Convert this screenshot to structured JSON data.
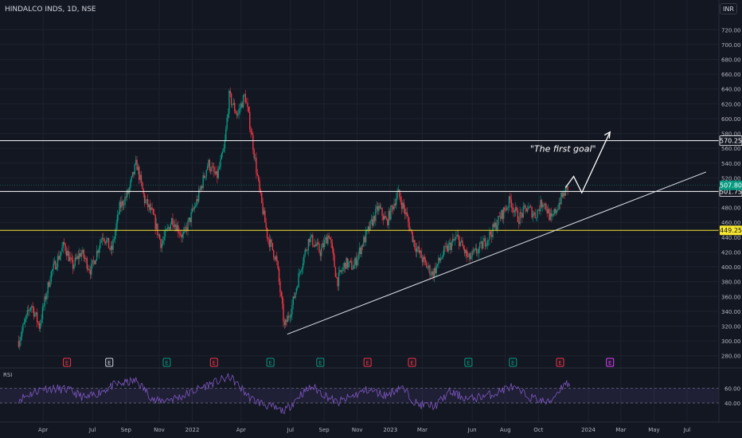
{
  "header": {
    "symbol": "HINDALCO INDS, 1D, NSE",
    "currency": "INR"
  },
  "chart_data": {
    "type": "candlestick",
    "price_axis": {
      "ylim": [
        270,
        730
      ],
      "ticks": [
        280,
        300,
        320,
        340,
        360,
        380,
        400,
        420,
        440,
        460,
        480,
        500,
        520,
        540,
        560,
        580,
        600,
        620,
        640,
        660,
        680,
        700,
        720
      ],
      "tick_labels": [
        "280.00",
        "300.00",
        "320.00",
        "340.00",
        "360.00",
        "380.00",
        "400.00",
        "420.00",
        "440.00",
        "460.00",
        "480.00",
        "500.00",
        "520.00",
        "540.00",
        "560.00",
        "580.00",
        "600.00",
        "620.00",
        "640.00",
        "660.00",
        "680.00",
        "700.00",
        "720.00"
      ]
    },
    "time_axis": {
      "labels": [
        "Apr",
        "Jul",
        "Sep",
        "Nov",
        "2022",
        "Apr",
        "Jul",
        "Sep",
        "Nov",
        "2023",
        "Mar",
        "Jun",
        "Aug",
        "Oct",
        "2024",
        "Mar",
        "May",
        "Jul"
      ],
      "dates": [
        "2021-04-01",
        "2021-07-01",
        "2021-09-01",
        "2021-11-01",
        "2022-01-01",
        "2022-04-01",
        "2022-07-01",
        "2022-09-01",
        "2022-11-01",
        "2023-01-01",
        "2023-03-01",
        "2023-06-01",
        "2023-08-01",
        "2023-10-01",
        "2024-01-01",
        "2024-03-01",
        "2024-05-01",
        "2024-07-01"
      ]
    },
    "price_path": [
      [
        "2021-02-15",
        300
      ],
      [
        "2021-03-10",
        350
      ],
      [
        "2021-03-25",
        320
      ],
      [
        "2021-04-15",
        390
      ],
      [
        "2021-05-10",
        430
      ],
      [
        "2021-05-25",
        400
      ],
      [
        "2021-06-10",
        420
      ],
      [
        "2021-06-28",
        395
      ],
      [
        "2021-07-20",
        445
      ],
      [
        "2021-08-05",
        420
      ],
      [
        "2021-08-20",
        480
      ],
      [
        "2021-09-05",
        500
      ],
      [
        "2021-09-20",
        540
      ],
      [
        "2021-10-05",
        490
      ],
      [
        "2021-10-20",
        470
      ],
      [
        "2021-11-05",
        430
      ],
      [
        "2021-11-25",
        465
      ],
      [
        "2021-12-15",
        440
      ],
      [
        "2022-01-10",
        490
      ],
      [
        "2022-01-30",
        540
      ],
      [
        "2022-02-15",
        520
      ],
      [
        "2022-03-01",
        560
      ],
      [
        "2022-03-10",
        630
      ],
      [
        "2022-03-25",
        605
      ],
      [
        "2022-04-08",
        632
      ],
      [
        "2022-04-20",
        580
      ],
      [
        "2022-05-05",
        500
      ],
      [
        "2022-05-20",
        440
      ],
      [
        "2022-06-05",
        410
      ],
      [
        "2022-06-20",
        318
      ],
      [
        "2022-07-05",
        350
      ],
      [
        "2022-07-20",
        400
      ],
      [
        "2022-08-05",
        440
      ],
      [
        "2022-08-25",
        420
      ],
      [
        "2022-09-10",
        445
      ],
      [
        "2022-09-25",
        380
      ],
      [
        "2022-10-10",
        405
      ],
      [
        "2022-10-25",
        400
      ],
      [
        "2022-11-10",
        430
      ],
      [
        "2022-11-25",
        455
      ],
      [
        "2022-12-10",
        480
      ],
      [
        "2022-12-25",
        460
      ],
      [
        "2023-01-15",
        500
      ],
      [
        "2023-01-30",
        470
      ],
      [
        "2023-02-15",
        430
      ],
      [
        "2023-03-05",
        405
      ],
      [
        "2023-03-20",
        390
      ],
      [
        "2023-04-10",
        420
      ],
      [
        "2023-05-05",
        440
      ],
      [
        "2023-05-25",
        410
      ],
      [
        "2023-06-15",
        425
      ],
      [
        "2023-07-05",
        445
      ],
      [
        "2023-07-25",
        470
      ],
      [
        "2023-08-10",
        490
      ],
      [
        "2023-08-25",
        465
      ],
      [
        "2023-09-10",
        480
      ],
      [
        "2023-09-25",
        470
      ],
      [
        "2023-10-10",
        490
      ],
      [
        "2023-10-25",
        462
      ],
      [
        "2023-11-10",
        490
      ],
      [
        "2023-11-25",
        508
      ]
    ],
    "horizontal_levels": [
      {
        "price": 570.25,
        "label": "570.25",
        "color": "#ffffff"
      },
      {
        "price": 501.75,
        "label": "501.75",
        "color": "#ffffff"
      },
      {
        "price": 449.25,
        "label": "449.25",
        "color": "#f5e430"
      }
    ],
    "current_price": {
      "price": 507.8,
      "label": "507.80",
      "color": "#089981"
    },
    "trendline": {
      "start": [
        "2022-06-25",
        309
      ],
      "end": [
        "2024-08-05",
        528
      ]
    },
    "projection_path": [
      [
        "2023-12-05",
        522
      ],
      [
        "2023-12-20",
        500
      ],
      [
        "2024-02-10",
        582
      ]
    ],
    "annotation": {
      "text": "\"The first goal\"",
      "date": "2023-09-01",
      "price": 565
    },
    "event_markers": [
      {
        "date": "2021-05-15",
        "letter": "E",
        "color": "#f23645"
      },
      {
        "date": "2021-08-01",
        "letter": "E",
        "color": "#d1d4dc"
      },
      {
        "date": "2021-11-15",
        "letter": "E",
        "color": "#089981"
      },
      {
        "date": "2022-02-10",
        "letter": "E",
        "color": "#f23645"
      },
      {
        "date": "2022-05-25",
        "letter": "E",
        "color": "#089981"
      },
      {
        "date": "2022-08-25",
        "letter": "E",
        "color": "#089981"
      },
      {
        "date": "2022-11-20",
        "letter": "E",
        "color": "#f23645"
      },
      {
        "date": "2023-02-10",
        "letter": "E",
        "color": "#f23645"
      },
      {
        "date": "2023-05-25",
        "letter": "E",
        "color": "#089981"
      },
      {
        "date": "2023-08-15",
        "letter": "E",
        "color": "#089981"
      },
      {
        "date": "2023-11-10",
        "letter": "E",
        "color": "#f23645"
      },
      {
        "date": "2024-02-10",
        "letter": "E",
        "color": "#e040fb"
      }
    ],
    "rsi": {
      "label": "RSI",
      "ylim": [
        25,
        85
      ],
      "bands": [
        40,
        60
      ],
      "tick_labels": [
        "60.00",
        "40.00"
      ],
      "path": [
        [
          "2021-02-15",
          45
        ],
        [
          "2021-04-01",
          60
        ],
        [
          "2021-05-15",
          58
        ],
        [
          "2021-06-20",
          46
        ],
        [
          "2021-08-10",
          64
        ],
        [
          "2021-09-20",
          70
        ],
        [
          "2021-10-25",
          42
        ],
        [
          "2021-12-10",
          48
        ],
        [
          "2022-01-25",
          63
        ],
        [
          "2022-03-12",
          75
        ],
        [
          "2022-04-20",
          45
        ],
        [
          "2022-05-25",
          35
        ],
        [
          "2022-06-20",
          28
        ],
        [
          "2022-07-20",
          52
        ],
        [
          "2022-08-10",
          62
        ],
        [
          "2022-09-25",
          40
        ],
        [
          "2022-11-20",
          58
        ],
        [
          "2022-12-25",
          50
        ],
        [
          "2023-01-20",
          62
        ],
        [
          "2023-02-20",
          38
        ],
        [
          "2023-03-25",
          36
        ],
        [
          "2023-04-20",
          55
        ],
        [
          "2023-05-25",
          45
        ],
        [
          "2023-07-10",
          52
        ],
        [
          "2023-08-10",
          62
        ],
        [
          "2023-09-15",
          48
        ],
        [
          "2023-10-20",
          40
        ],
        [
          "2023-11-20",
          68
        ],
        [
          "2023-11-28",
          62
        ]
      ]
    }
  }
}
